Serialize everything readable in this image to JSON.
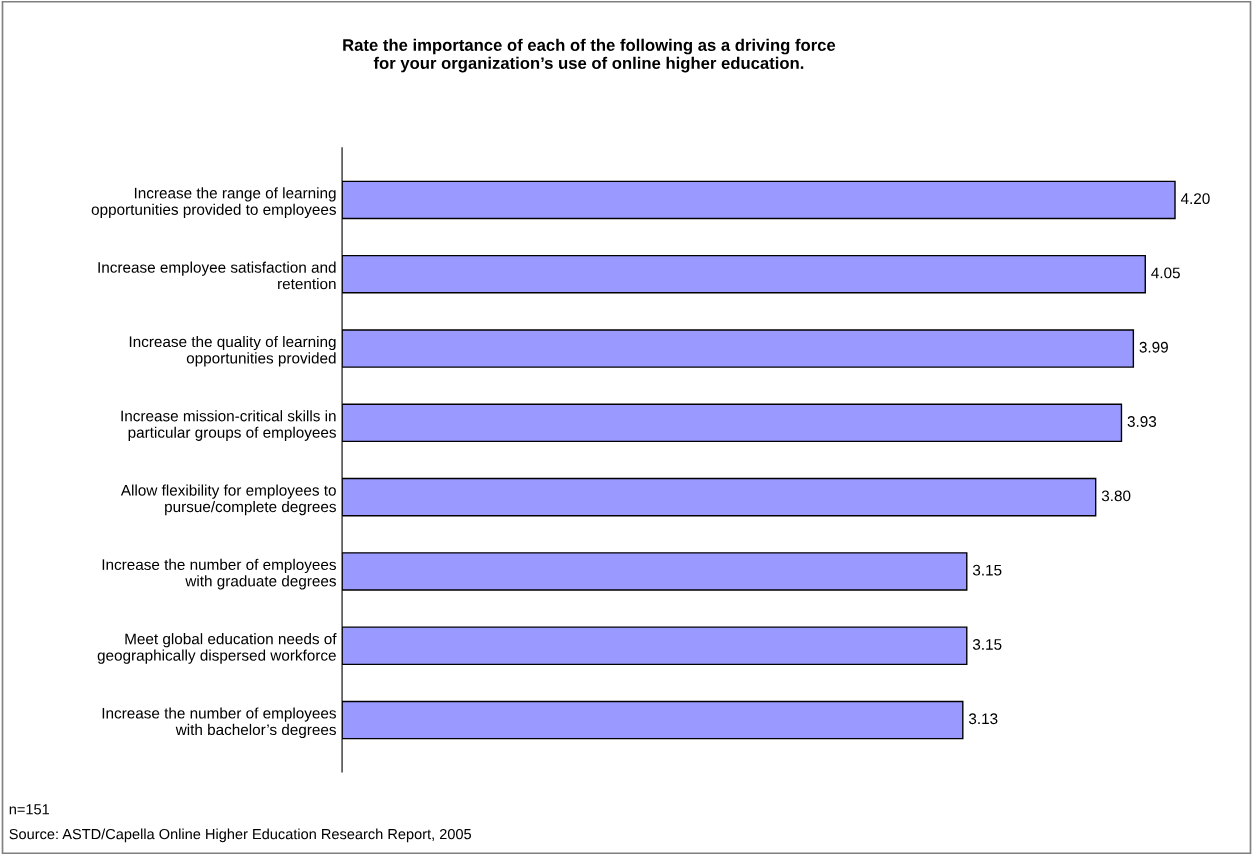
{
  "chart_data": {
    "type": "bar",
    "orientation": "horizontal",
    "title": "Rate the importance of each of the following as a driving force\nfor your organization’s use of online higher education.",
    "categories": [
      "Increase the range of learning\nopportunities provided to employees",
      "Increase employee satisfaction and\nretention",
      "Increase the quality of learning\nopportunities provided",
      "Increase mission-critical skills in\nparticular groups of employees",
      "Allow flexibility for employees to\npursue/complete degrees",
      "Increase the number of employees\nwith graduate degrees",
      "Meet global education needs of\ngeographically dispersed workforce",
      "Increase the number of employees\nwith bachelor’s degrees"
    ],
    "values": [
      4.2,
      4.05,
      3.99,
      3.93,
      3.8,
      3.15,
      3.15,
      3.13
    ],
    "value_labels": [
      "4.20",
      "4.05",
      "3.99",
      "3.93",
      "3.80",
      "3.15",
      "3.15",
      "3.13"
    ],
    "color": "#9999ff",
    "grid": false,
    "legend": false,
    "tick_labels": "y",
    "annotations": [
      "n=151",
      "Source: ASTD/Capella Online Higher Education Research Report, 2005"
    ]
  }
}
